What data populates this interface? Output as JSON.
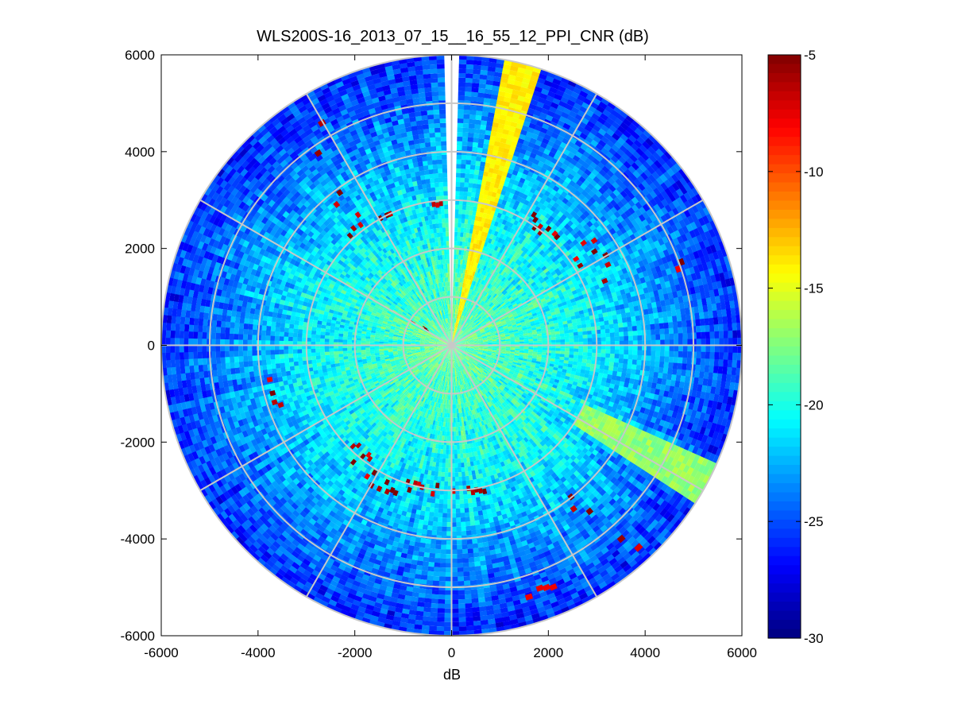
{
  "chart_data": {
    "type": "heatmap",
    "subtype": "polar-ppi-scan",
    "title": "WLS200S-16_2013_07_15__16_55_12_PPI_CNR (dB)",
    "xlabel": "dB",
    "ylabel": "",
    "xlim": [
      -6000,
      6000
    ],
    "ylim": [
      -6000,
      6000
    ],
    "x_ticks": [
      -6000,
      -4000,
      -2000,
      0,
      2000,
      4000,
      6000
    ],
    "y_ticks": [
      6000,
      4000,
      2000,
      0,
      -2000,
      -4000,
      -6000
    ],
    "x_tick_labels": [
      "-6000",
      "-4000",
      "-2000",
      "0",
      "2000",
      "4000",
      "6000"
    ],
    "y_tick_labels": [
      "6000",
      "4000",
      "2000",
      "0",
      "-2000",
      "-4000",
      "-6000"
    ],
    "max_range": 6000,
    "range_rings": [
      1000,
      2000,
      3000,
      4000,
      5000,
      6000
    ],
    "spoke_angles_deg": [
      0,
      30,
      60,
      90,
      120,
      150,
      180,
      210,
      240,
      270,
      300,
      330
    ],
    "colormap": "jet",
    "clim": [
      -30,
      -5
    ],
    "colorbar_ticks": [
      -5,
      -10,
      -15,
      -20,
      -25,
      -30
    ],
    "colorbar_tick_labels": [
      "-5",
      "-10",
      "-15",
      "-20",
      "-25",
      "-30"
    ],
    "features": {
      "near_range_cnr_db": -18,
      "mid_range_cnr_db": -21,
      "far_range_cnr_db": -26,
      "high_cnr_sector": {
        "azimuth_deg_from_north": [
          10,
          18
        ],
        "cnr_db": -14
      },
      "blank_sector": {
        "azimuth_deg_from_north": [
          -1,
          1
        ]
      },
      "high_cnr_band": {
        "azimuth_deg_from_north": [
          114,
          123
        ],
        "range_m": [
          3000,
          6000
        ],
        "cnr_db": -17
      },
      "hard_target_cnr_db": -6
    }
  },
  "colors": {
    "background": "#ffffff",
    "grid": "#c8c8c8",
    "axis": "#000000"
  }
}
